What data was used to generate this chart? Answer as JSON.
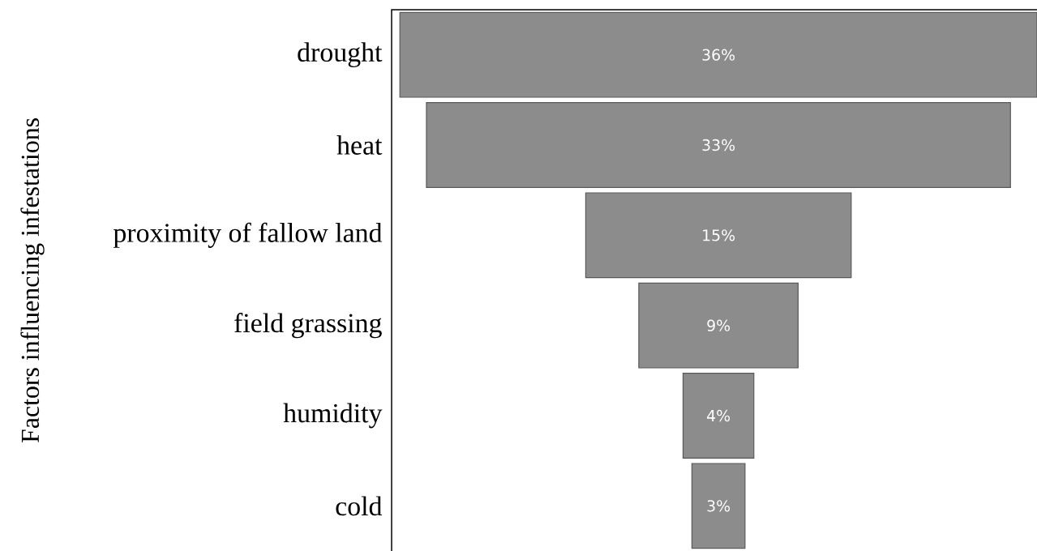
{
  "chart_data": {
    "type": "other",
    "ylabel": "Factors influencing infestations",
    "categories": [
      "drought",
      "heat",
      "proximity of fallow land",
      "field grassing",
      "humidity",
      "cold"
    ],
    "values": [
      36,
      33,
      15,
      9,
      4,
      3
    ],
    "value_labels": [
      "36%",
      "33%",
      "15%",
      "9%",
      "4%",
      "3%"
    ],
    "color": "#8c8c8c"
  }
}
